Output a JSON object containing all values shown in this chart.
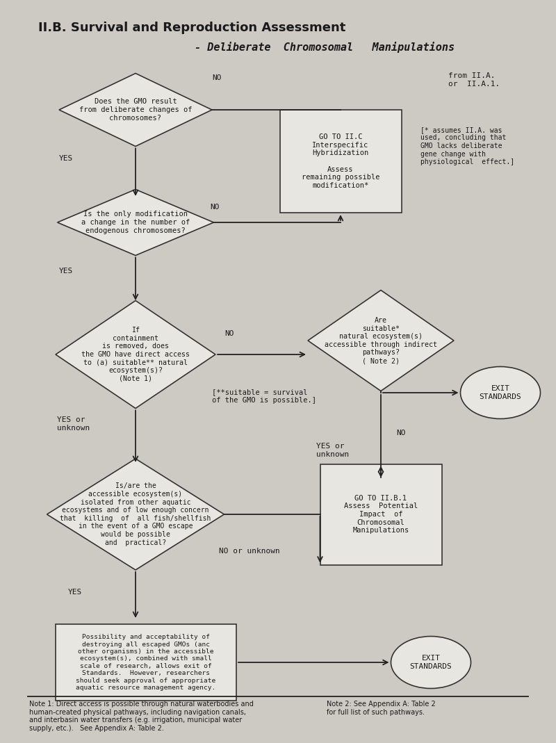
{
  "title1": "II.B. Survival and Reproduction Assessment",
  "title2": "- Deliberate  Chromosomal   Manipulations",
  "bg_color": "#cccac3",
  "box_color": "#e8e6e0",
  "box_edge": "#333333",
  "text_color": "#1a1a1a",
  "arrow_color": "#222222",
  "note1": "Note 1: Direct access is possible through natural waterbodies and\nhuman-created physical pathways, including navigation canals,\nand interbasin water transfers (e.g. irrigation, municipal water\nsupply, etc.).   See Appendix A: Table 2.",
  "note2": "Note 2: See Appendix A: Table 2\nfor full list of such pathways."
}
